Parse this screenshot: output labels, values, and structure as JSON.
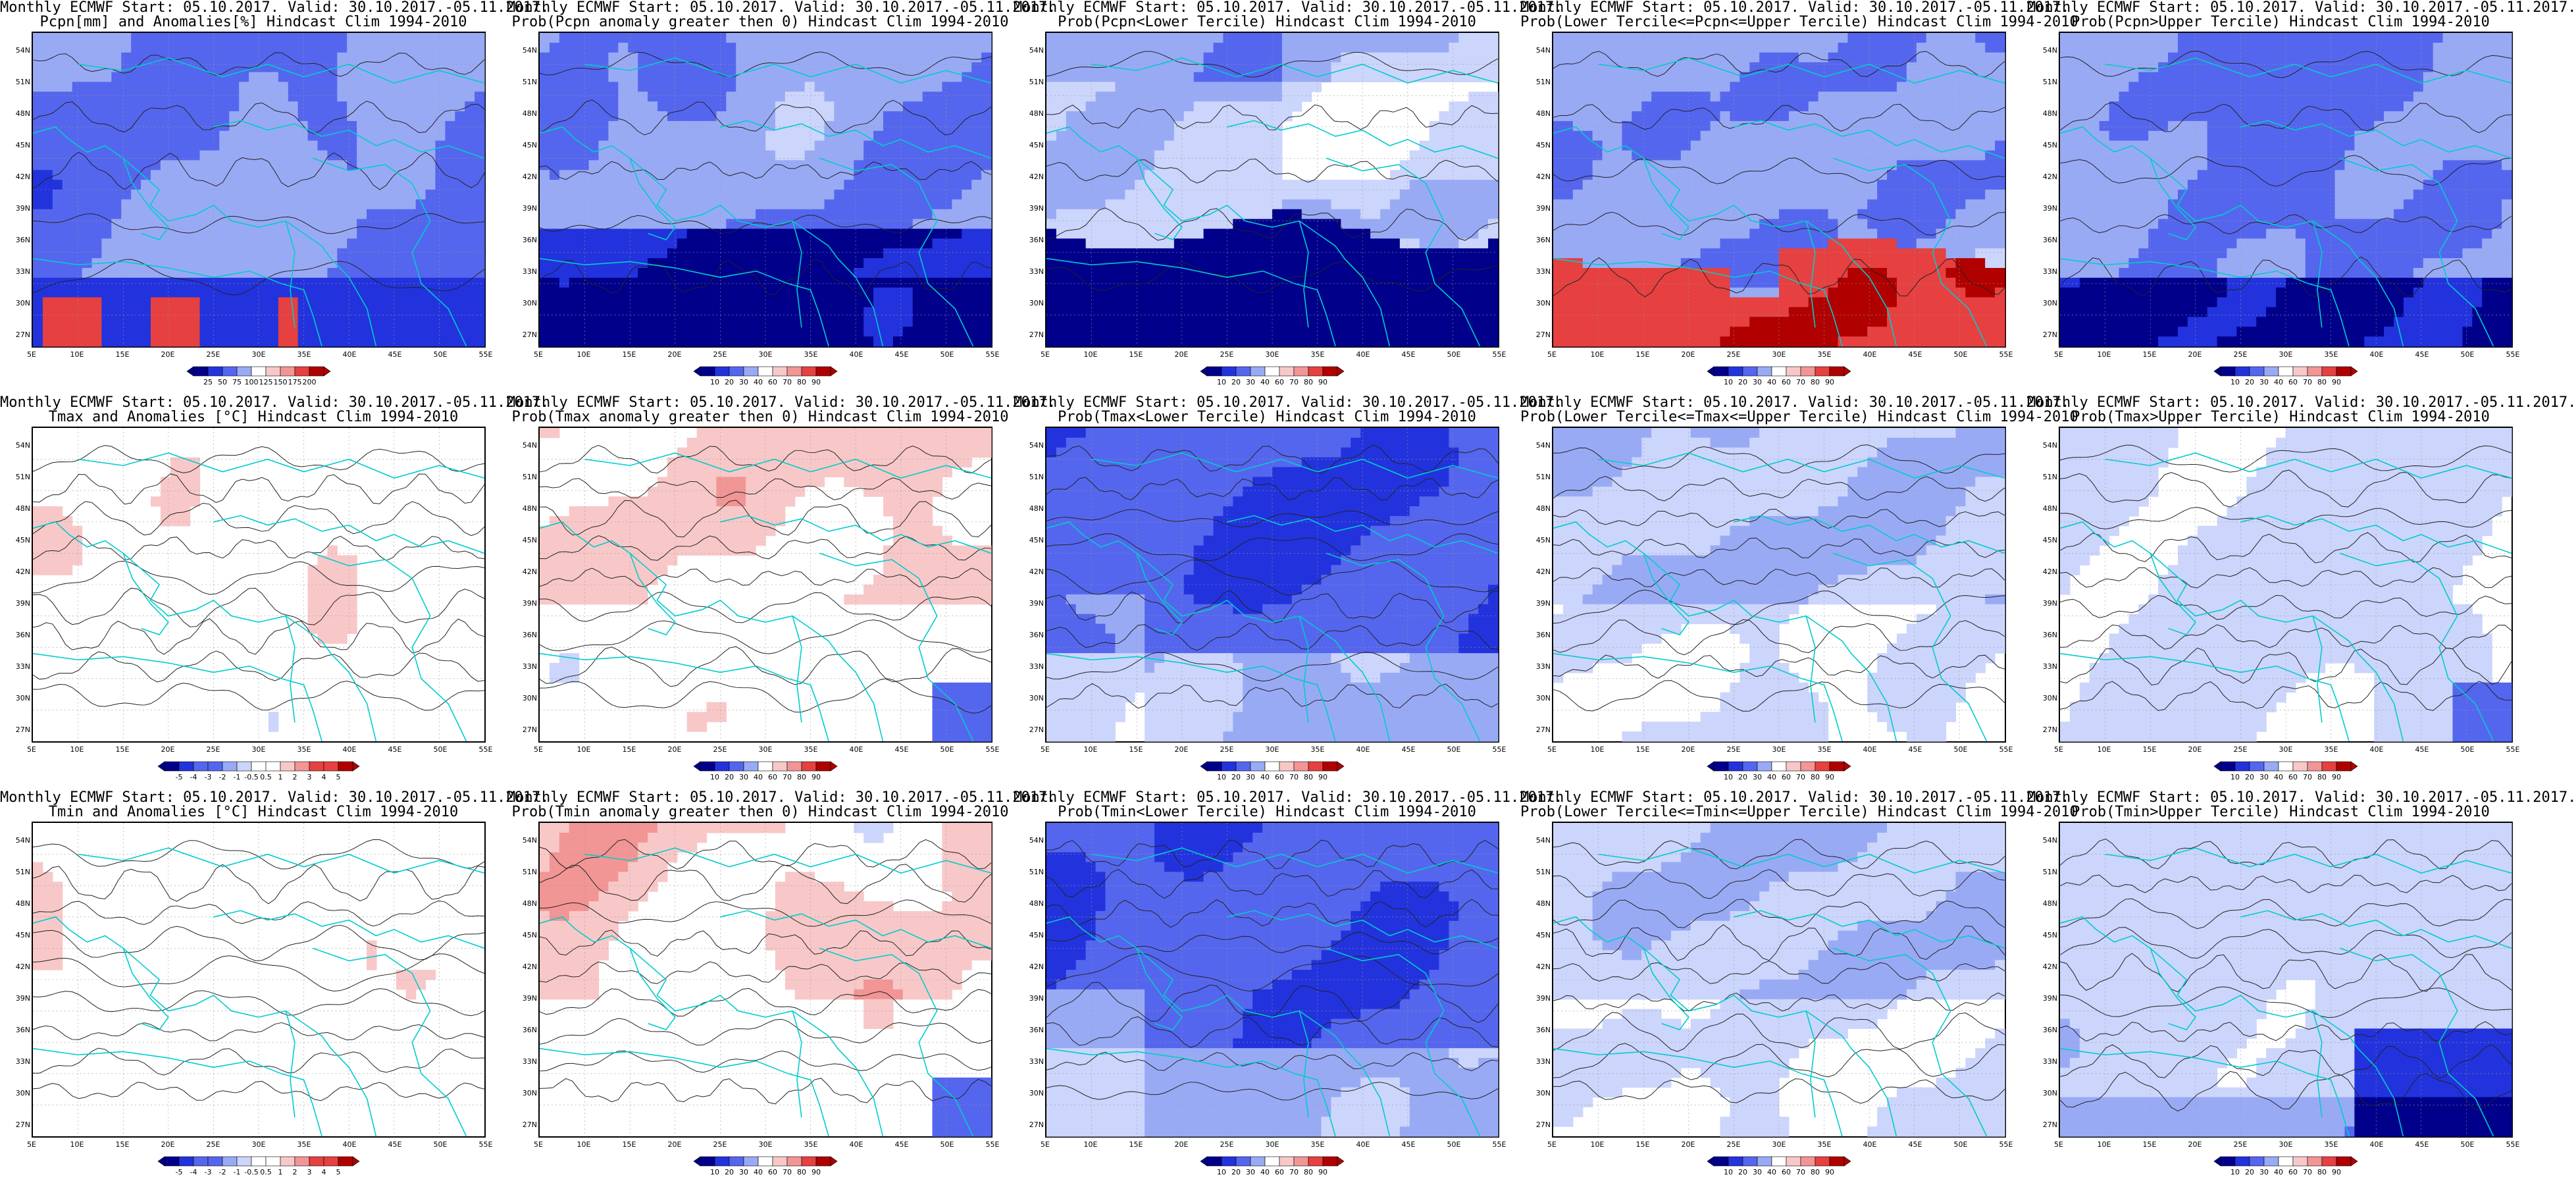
{
  "lat_labels": [
    "54N",
    "51N",
    "48N",
    "45N",
    "42N",
    "39N",
    "36N",
    "33N",
    "30N",
    "27N"
  ],
  "lon_labels": [
    "5E",
    "10E",
    "15E",
    "20E",
    "25E",
    "30E",
    "35E",
    "40E",
    "45E",
    "50E",
    "55E"
  ],
  "colors": {
    "blue_dark": "#00008b",
    "blue": "#2233dd",
    "blue_mid": "#5566ee",
    "blue_light": "#99aaf5",
    "blue_pale": "#ccd5fb",
    "white": "#ffffff",
    "red_pale": "#f8c8c8",
    "red_light": "#f29595",
    "red": "#e64040",
    "red_dark": "#b00000",
    "coast": "#00cccc",
    "contour": "#222222"
  },
  "legends": {
    "pcpn_anom": [
      "25",
      "50",
      "75",
      "100",
      "125",
      "150",
      "175",
      "200"
    ],
    "prob": [
      "10",
      "20",
      "30",
      "40",
      "60",
      "70",
      "80",
      "90"
    ],
    "temp_anom": [
      "-5",
      "-4",
      "-3",
      "-2",
      "-1",
      "-0.5",
      "0.5",
      "1",
      "2",
      "3",
      "4",
      "5"
    ]
  },
  "panels": [
    {
      "title1": "Monthly ECMWF Start: 05.10.2017. Valid: 30.10.2017.-05.11.2017.",
      "title2": "Pcpn[mm] and Anomalies[%] Hindcast Clim 1994-2010",
      "legend": "pcpn_anom",
      "style": "pcpn_anom",
      "seed": 11
    },
    {
      "title1": "Monthly ECMWF Start: 05.10.2017. Valid: 30.10.2017.-05.11.2017.",
      "title2": "Prob(Pcpn anomaly greater then 0) Hindcast Clim 1994-2010",
      "legend": "prob",
      "style": "pcpn_prob",
      "seed": 23
    },
    {
      "title1": "Monthly ECMWF Start: 05.10.2017. Valid: 30.10.2017.-05.11.2017.",
      "title2": "Prob(Pcpn<Lower Tercile) Hindcast Clim 1994-2010",
      "legend": "prob",
      "style": "pcpn_lower",
      "seed": 37
    },
    {
      "title1": "Monthly ECMWF Start: 05.10.2017. Valid: 30.10.2017.-05.11.2017.",
      "title2": "Prob(Lower Tercile<=Pcpn<=Upper Tercile) Hindcast Clim 1994-2010",
      "legend": "prob",
      "style": "pcpn_mid",
      "seed": 41
    },
    {
      "title1": "Monthly ECMWF Start: 05.10.2017. Valid: 30.10.2017.-05.11.2017.",
      "title2": "Prob(Pcpn>Upper Tercile) Hindcast Clim 1994-2010",
      "legend": "prob",
      "style": "pcpn_upper",
      "seed": 53
    },
    {
      "title1": "Monthly ECMWF Start: 05.10.2017. Valid: 30.10.2017.-05.11.2017.",
      "title2": "Tmax and Anomalies [°C] Hindcast Clim 1994-2010",
      "legend": "temp_anom",
      "style": "t_anom",
      "seed": 61
    },
    {
      "title1": "Monthly ECMWF Start: 05.10.2017. Valid: 30.10.2017.-05.11.2017.",
      "title2": "Prob(Tmax anomaly greater then 0) Hindcast Clim 1994-2010",
      "legend": "prob",
      "style": "t_prob",
      "seed": 71
    },
    {
      "title1": "Monthly ECMWF Start: 05.10.2017. Valid: 30.10.2017.-05.11.2017.",
      "title2": "Prob(Tmax<Lower Tercile) Hindcast Clim 1994-2010",
      "legend": "prob",
      "style": "t_lower",
      "seed": 79
    },
    {
      "title1": "Monthly ECMWF Start: 05.10.2017. Valid: 30.10.2017.-05.11.2017.",
      "title2": "Prob(Lower Tercile<=Tmax<=Upper Tercile) Hindcast Clim 1994-2010",
      "legend": "prob",
      "style": "t_mid",
      "seed": 83
    },
    {
      "title1": "Monthly ECMWF Start: 05.10.2017. Valid: 30.10.2017.-05.11.2017.",
      "title2": "Prob(Tmax>Upper Tercile) Hindcast Clim 1994-2010",
      "legend": "prob",
      "style": "t_upper",
      "seed": 89
    },
    {
      "title1": "Monthly ECMWF Start: 05.10.2017. Valid: 30.10.2017.-05.11.2017.",
      "title2": "Tmin and Anomalies [°C] Hindcast Clim 1994-2010",
      "legend": "temp_anom",
      "style": "t_anom",
      "seed": 97
    },
    {
      "title1": "Monthly ECMWF Start: 05.10.2017. Valid: 30.10.2017.-05.11.2017.",
      "title2": "Prob(Tmin anomaly greater then 0) Hindcast Clim 1994-2010",
      "legend": "prob",
      "style": "t_prob",
      "seed": 101
    },
    {
      "title1": "Monthly ECMWF Start: 05.10.2017. Valid: 30.10.2017.-05.11.2017.",
      "title2": "Prob(Tmin<Lower Tercile) Hindcast Clim 1994-2010",
      "legend": "prob",
      "style": "t_lower",
      "seed": 103
    },
    {
      "title1": "Monthly ECMWF Start: 05.10.2017. Valid: 30.10.2017.-05.11.2017.",
      "title2": "Prob(Lower Tercile<=Tmin<=Upper Tercile) Hindcast Clim 1994-2010",
      "legend": "prob",
      "style": "t_mid",
      "seed": 107
    },
    {
      "title1": "Monthly ECMWF Start: 05.10.2017. Valid: 30.10.2017.-05.11.2017.",
      "title2": "Prob(Tmin>Upper Tercile) Hindcast Clim 1994-2010",
      "legend": "prob",
      "style": "t_upper_min",
      "seed": 109
    }
  ]
}
